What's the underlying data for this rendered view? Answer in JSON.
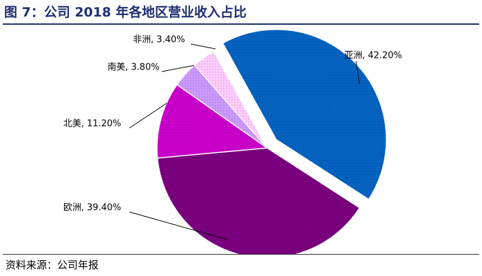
{
  "header": {
    "title": "图 7：公司 2018 年各地区营业收入占比"
  },
  "footer": {
    "source": "资料来源：公司年报"
  },
  "colors": {
    "亚洲": "#0563c1",
    "欧洲": "#7b0080",
    "北美": "#cc00cc",
    "南美": "#cc99ff",
    "非洲": "#ffccff"
  },
  "chart_data": {
    "type": "pie",
    "title": "公司 2018 年各地区营业收入占比",
    "exploded_slice": "亚洲",
    "slices": [
      {
        "name": "亚洲",
        "value": 42.2,
        "label": "亚洲, 42.20%"
      },
      {
        "name": "欧洲",
        "value": 39.4,
        "label": "欧洲, 39.40%"
      },
      {
        "name": "北美",
        "value": 11.2,
        "label": "北美, 11.20%"
      },
      {
        "name": "南美",
        "value": 3.8,
        "label": "南美, 3.80%"
      },
      {
        "name": "非洲",
        "value": 3.4,
        "label": "非洲, 3.40%"
      }
    ]
  }
}
